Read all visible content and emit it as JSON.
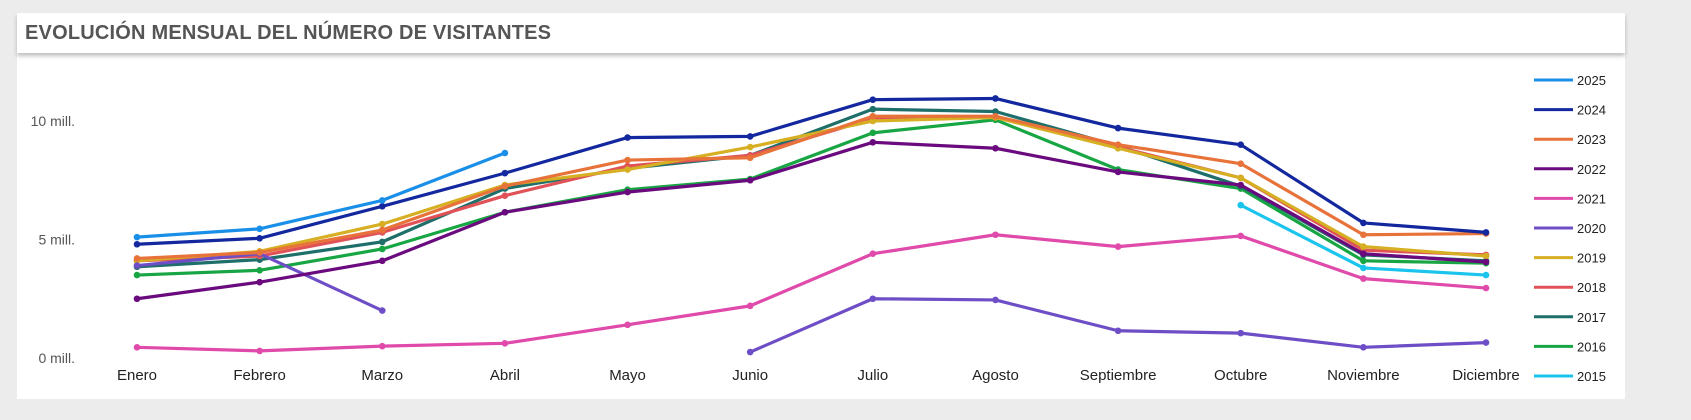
{
  "title": "EVOLUCIÓN MENSUAL DEL NÚMERO DE VISITANTES",
  "chart_data": {
    "type": "line",
    "title": "EVOLUCIÓN MENSUAL DEL NÚMERO DE VISITANTES",
    "categories": [
      "Enero",
      "Febrero",
      "Marzo",
      "Abril",
      "Mayo",
      "Junio",
      "Julio",
      "Agosto",
      "Septiembre",
      "Octubre",
      "Noviembre",
      "Diciembre"
    ],
    "y_ticks": [
      {
        "value": 0,
        "label": "0 mill."
      },
      {
        "value": 5,
        "label": "5 mill."
      },
      {
        "value": 10,
        "label": "10 mill."
      }
    ],
    "ylim": [
      0,
      11.5
    ],
    "grid": false,
    "legend_position": "right",
    "series": [
      {
        "name": "2025",
        "color": "#1a8fe8",
        "values": [
          5.1,
          5.45,
          6.65,
          8.65,
          null,
          null,
          null,
          null,
          null,
          null,
          null,
          null
        ]
      },
      {
        "name": "2024",
        "color": "#13289e",
        "values": [
          4.8,
          5.05,
          6.4,
          7.8,
          9.3,
          9.35,
          10.9,
          10.95,
          9.7,
          9.0,
          5.7,
          5.3
        ]
      },
      {
        "name": "2023",
        "color": "#e8733a",
        "values": [
          4.2,
          4.45,
          5.4,
          7.25,
          8.35,
          8.45,
          10.2,
          10.2,
          9.0,
          8.2,
          5.2,
          5.25
        ]
      },
      {
        "name": "2022",
        "color": "#6a0a7e",
        "values": [
          2.5,
          3.2,
          4.1,
          6.15,
          7.0,
          7.5,
          9.1,
          8.85,
          7.85,
          7.3,
          4.4,
          4.05
        ]
      },
      {
        "name": "2021",
        "color": "#e04aab",
        "values": [
          0.45,
          0.3,
          0.5,
          0.62,
          1.4,
          2.2,
          4.4,
          5.2,
          4.7,
          5.15,
          3.35,
          2.95
        ]
      },
      {
        "name": "2020",
        "color": "#6e4ec6",
        "values": [
          3.9,
          4.4,
          2.0,
          null,
          null,
          0.25,
          2.5,
          2.45,
          1.15,
          1.05,
          0.45,
          0.65
        ]
      },
      {
        "name": "2019",
        "color": "#d6af22",
        "values": [
          4.1,
          4.5,
          5.65,
          7.3,
          7.95,
          8.9,
          10.0,
          10.15,
          8.85,
          7.6,
          4.7,
          4.3
        ]
      },
      {
        "name": "2018",
        "color": "#e05258",
        "values": [
          4.1,
          4.3,
          5.3,
          6.85,
          8.1,
          8.55,
          10.1,
          10.15,
          8.9,
          7.6,
          4.55,
          4.35
        ]
      },
      {
        "name": "2017",
        "color": "#1e6e6a",
        "values": [
          3.85,
          4.15,
          4.9,
          7.15,
          8.0,
          8.55,
          10.5,
          10.4,
          8.95,
          7.25,
          4.35,
          4.1
        ]
      },
      {
        "name": "2016",
        "color": "#18a543",
        "values": [
          3.5,
          3.7,
          4.6,
          6.15,
          7.1,
          7.55,
          9.5,
          10.05,
          7.95,
          7.15,
          4.1,
          4.0
        ]
      },
      {
        "name": "2015",
        "color": "#1bc4ec",
        "values": [
          null,
          null,
          null,
          null,
          null,
          null,
          null,
          null,
          null,
          6.45,
          3.8,
          3.5
        ]
      }
    ]
  }
}
